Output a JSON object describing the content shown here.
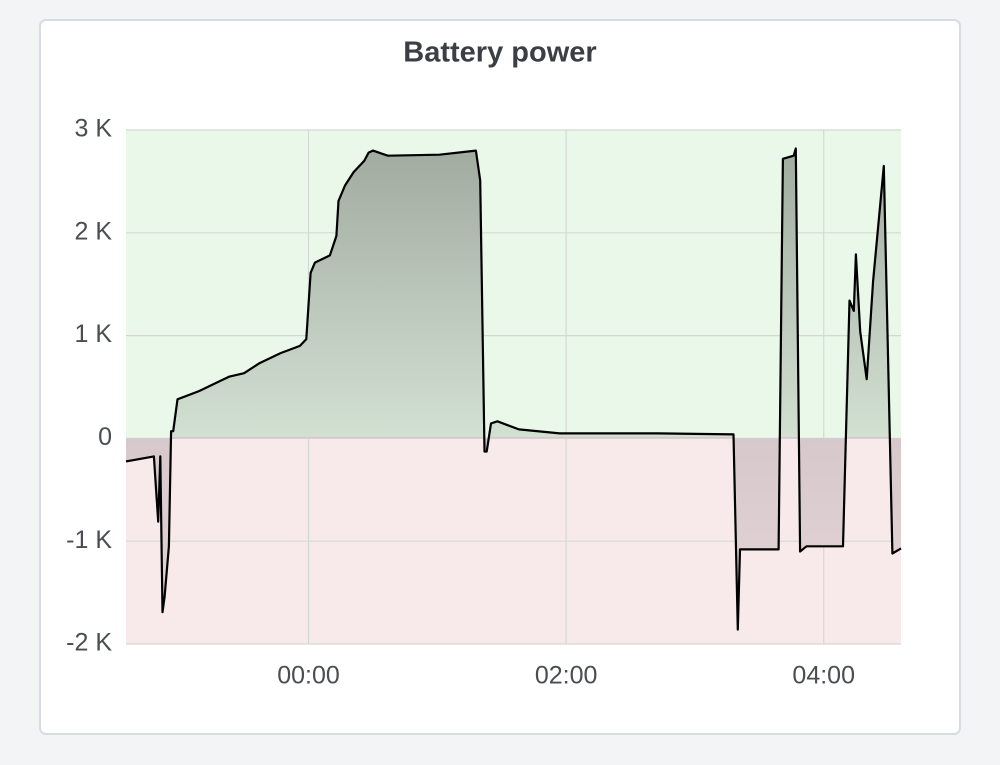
{
  "chart_data": {
    "type": "line",
    "title": "Battery power",
    "x": [
      "22:35",
      "22:48",
      "22:50",
      "22:51",
      "22:52",
      "22:53",
      "22:55",
      "22:56",
      "22:57",
      "22:59",
      "23:09",
      "23:23",
      "23:30",
      "23:37",
      "23:47",
      "23:56",
      "23:59",
      "00:01",
      "00:03",
      "00:10",
      "00:13",
      "00:14",
      "00:17",
      "00:21",
      "00:26",
      "00:28",
      "00:30",
      "00:37",
      "01:01",
      "01:18",
      "01:20",
      "01:22",
      "01:23",
      "01:25",
      "01:28",
      "01:38",
      "01:57",
      "02:43",
      "03:18",
      "03:20",
      "03:21",
      "03:39",
      "03:41",
      "03:46",
      "03:47",
      "03:49",
      "03:52",
      "04:09",
      "04:12",
      "04:14",
      "04:15",
      "04:17",
      "04:20",
      "04:23",
      "04:28",
      "04:32",
      "04:36"
    ],
    "values": [
      -224,
      -175,
      -810,
      -175,
      -1690,
      -1540,
      -1050,
      70,
      70,
      380,
      460,
      600,
      634,
      730,
      830,
      900,
      966,
      1610,
      1710,
      1780,
      1970,
      2310,
      2460,
      2590,
      2700,
      2780,
      2800,
      2750,
      2760,
      2800,
      2510,
      -127,
      -127,
      146,
      166,
      88,
      49,
      49,
      39,
      -1860,
      -1080,
      -1080,
      2720,
      2750,
      2820,
      -1100,
      -1050,
      -1050,
      1340,
      1240,
      1790,
      1040,
      576,
      1530,
      2650,
      -1120,
      -1070
    ],
    "color": "#000000",
    "fill": true,
    "positive_color": "#eaf8ea",
    "negative_color": "#f8eaea",
    "xlim": [
      "22:35",
      "04:36"
    ],
    "xticks": [
      "00:00",
      "02:00",
      "04:00"
    ],
    "ylim": [
      -2000,
      3000
    ],
    "yticks": [
      {
        "value": -2000,
        "label": "-2 K"
      },
      {
        "value": -1000,
        "label": "-1 K"
      },
      0,
      {
        "value": 1000,
        "label": "1 K"
      },
      {
        "value": 2000,
        "label": "2 K"
      },
      {
        "value": 3000,
        "label": "3 K"
      }
    ],
    "grid": true
  }
}
